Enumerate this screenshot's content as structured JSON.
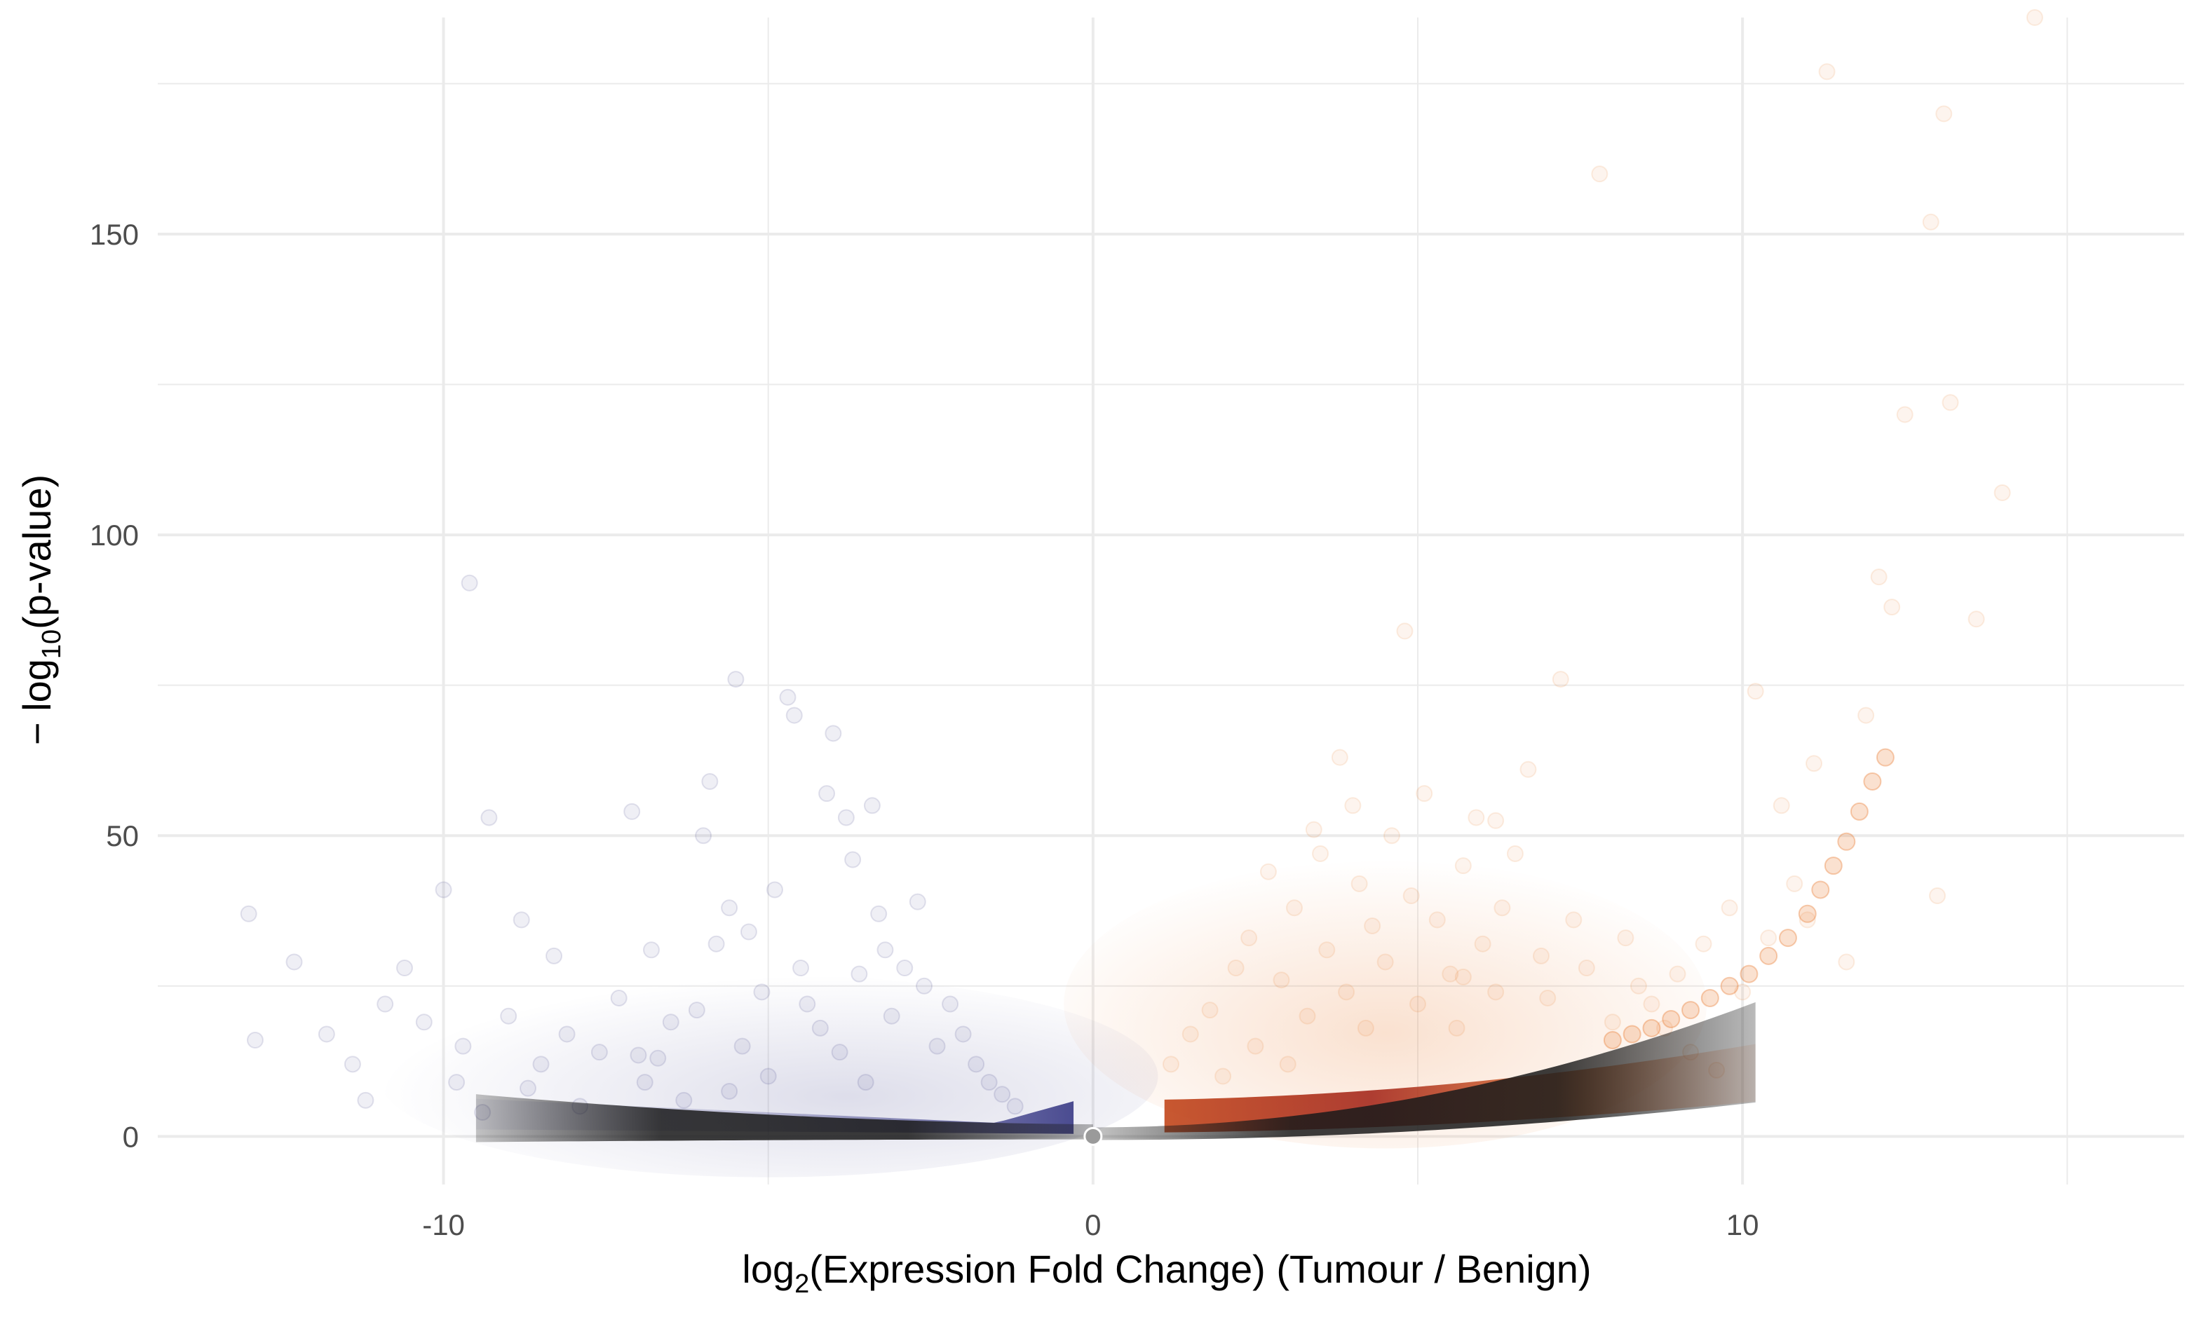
{
  "chart_data": {
    "type": "scatter",
    "title": "",
    "xlabel": {
      "prefix": "log",
      "sub": "2",
      "suffix": "(Expression Fold Change) (Tumour / Benign)"
    },
    "ylabel": {
      "prefix": "− log",
      "sub": "10",
      "suffix": "(p-value)"
    },
    "xlim": [
      -14.4,
      16.8
    ],
    "ylim": [
      -8,
      186
    ],
    "x_ticks": [
      -10,
      0,
      10
    ],
    "x_tick_labels": [
      "-10",
      "0",
      "10"
    ],
    "y_ticks": [
      0,
      50,
      100,
      150
    ],
    "y_tick_labels": [
      "0",
      "50",
      "100",
      "150"
    ],
    "grid": true,
    "legend": "none",
    "colors": {
      "down": "#2e2f7f",
      "up_high": "#e8782a",
      "up_mid": "#a01e12",
      "core": "#1a1a1a",
      "center": "#9a9a9a",
      "grid": "#ebebeb"
    },
    "series": [
      {
        "values": [
          [
            -13.0,
            37
          ],
          [
            -12.9,
            16
          ],
          [
            -12.3,
            29
          ],
          [
            -11.8,
            17
          ],
          [
            -11.4,
            12
          ],
          [
            -11.2,
            6
          ],
          [
            -10.9,
            22
          ],
          [
            -10.6,
            28
          ],
          [
            -10.3,
            19
          ],
          [
            -10.0,
            41
          ],
          [
            -9.8,
            9
          ],
          [
            -9.7,
            15
          ],
          [
            -9.6,
            92
          ],
          [
            -9.4,
            4
          ],
          [
            -9.3,
            53
          ],
          [
            -9.0,
            20
          ],
          [
            -8.8,
            36
          ],
          [
            -8.7,
            8
          ],
          [
            -8.5,
            12
          ],
          [
            -8.3,
            30
          ],
          [
            -8.1,
            17
          ],
          [
            -7.9,
            5
          ],
          [
            -7.6,
            14
          ],
          [
            -7.3,
            23
          ],
          [
            -7.1,
            54
          ],
          [
            -6.9,
            9
          ],
          [
            -6.8,
            31
          ],
          [
            -6.7,
            13
          ],
          [
            -6.5,
            19
          ],
          [
            -6.3,
            6
          ],
          [
            -6.1,
            21
          ],
          [
            -6.0,
            50
          ],
          [
            -5.9,
            59
          ],
          [
            -5.8,
            32
          ],
          [
            -5.6,
            38
          ],
          [
            -5.5,
            76
          ],
          [
            -5.4,
            15
          ],
          [
            -5.3,
            34
          ],
          [
            -5.1,
            24
          ],
          [
            -5.0,
            10
          ],
          [
            -4.9,
            41
          ],
          [
            -4.7,
            73
          ],
          [
            -4.6,
            70
          ],
          [
            -4.5,
            28
          ],
          [
            -4.4,
            22
          ],
          [
            -4.2,
            18
          ],
          [
            -4.1,
            57
          ],
          [
            -4.0,
            67
          ],
          [
            -3.9,
            14
          ],
          [
            -3.8,
            53
          ],
          [
            -3.7,
            46
          ],
          [
            -3.6,
            27
          ],
          [
            -3.5,
            9
          ],
          [
            -3.4,
            55
          ],
          [
            -3.3,
            37
          ],
          [
            -3.2,
            31
          ],
          [
            -3.1,
            20
          ],
          [
            -2.9,
            28
          ],
          [
            -2.7,
            39
          ],
          [
            -2.6,
            25
          ],
          [
            -2.4,
            15
          ],
          [
            -2.2,
            22
          ],
          [
            -2.0,
            17
          ],
          [
            -1.8,
            12
          ],
          [
            -1.6,
            9
          ],
          [
            -1.4,
            7
          ],
          [
            -1.2,
            5
          ],
          [
            -7.0,
            13.5
          ],
          [
            -5.6,
            7.5
          ]
        ]
      },
      {
        "values": [
          [
            1.2,
            12
          ],
          [
            1.5,
            17
          ],
          [
            1.8,
            21
          ],
          [
            2.0,
            10
          ],
          [
            2.2,
            28
          ],
          [
            2.4,
            33
          ],
          [
            2.5,
            15
          ],
          [
            2.7,
            44
          ],
          [
            2.9,
            26
          ],
          [
            3.0,
            12
          ],
          [
            3.1,
            38
          ],
          [
            3.3,
            20
          ],
          [
            3.4,
            51
          ],
          [
            3.5,
            47
          ],
          [
            3.6,
            31
          ],
          [
            3.8,
            63
          ],
          [
            3.9,
            24
          ],
          [
            4.0,
            55
          ],
          [
            4.1,
            42
          ],
          [
            4.2,
            18
          ],
          [
            4.3,
            35
          ],
          [
            4.5,
            29
          ],
          [
            4.6,
            50
          ],
          [
            4.8,
            84
          ],
          [
            4.9,
            40
          ],
          [
            5.0,
            22
          ],
          [
            5.1,
            57
          ],
          [
            5.3,
            36
          ],
          [
            5.5,
            27
          ],
          [
            5.6,
            18
          ],
          [
            5.7,
            45
          ],
          [
            5.9,
            53
          ],
          [
            6.0,
            32
          ],
          [
            6.2,
            24
          ],
          [
            6.3,
            38
          ],
          [
            6.5,
            47
          ],
          [
            6.7,
            61
          ],
          [
            6.9,
            30
          ],
          [
            7.0,
            23
          ],
          [
            7.2,
            76
          ],
          [
            7.4,
            36
          ],
          [
            7.6,
            28
          ],
          [
            7.8,
            160
          ],
          [
            8.0,
            19
          ],
          [
            8.2,
            33
          ],
          [
            8.4,
            25
          ],
          [
            8.6,
            22
          ],
          [
            8.8,
            18
          ],
          [
            9.0,
            27
          ],
          [
            9.2,
            14
          ],
          [
            9.4,
            32
          ],
          [
            9.6,
            11
          ],
          [
            9.8,
            38
          ],
          [
            10.0,
            24
          ],
          [
            10.2,
            74
          ],
          [
            10.4,
            33
          ],
          [
            10.6,
            55
          ],
          [
            10.8,
            42
          ],
          [
            11.0,
            36
          ],
          [
            11.1,
            62
          ],
          [
            11.3,
            177
          ],
          [
            11.6,
            29
          ],
          [
            11.9,
            70
          ],
          [
            12.1,
            93
          ],
          [
            12.3,
            88
          ],
          [
            12.5,
            120
          ],
          [
            12.9,
            152
          ],
          [
            13.0,
            40
          ],
          [
            13.1,
            170
          ],
          [
            13.2,
            122
          ],
          [
            13.6,
            86
          ],
          [
            14.0,
            107
          ],
          [
            14.5,
            186
          ],
          [
            5.7,
            26.5
          ],
          [
            6.2,
            52.5
          ]
        ]
      },
      {
        "values": [
          [
            8.0,
            16
          ],
          [
            8.3,
            17
          ],
          [
            8.6,
            18
          ],
          [
            8.9,
            19.5
          ],
          [
            9.2,
            21
          ],
          [
            9.5,
            23
          ],
          [
            9.8,
            25
          ],
          [
            10.1,
            27
          ],
          [
            10.4,
            30
          ],
          [
            10.7,
            33
          ],
          [
            11.0,
            37
          ],
          [
            11.2,
            41
          ],
          [
            11.4,
            45
          ],
          [
            11.6,
            49
          ],
          [
            11.8,
            54
          ],
          [
            12.0,
            59
          ],
          [
            12.2,
            63
          ]
        ]
      }
    ]
  }
}
